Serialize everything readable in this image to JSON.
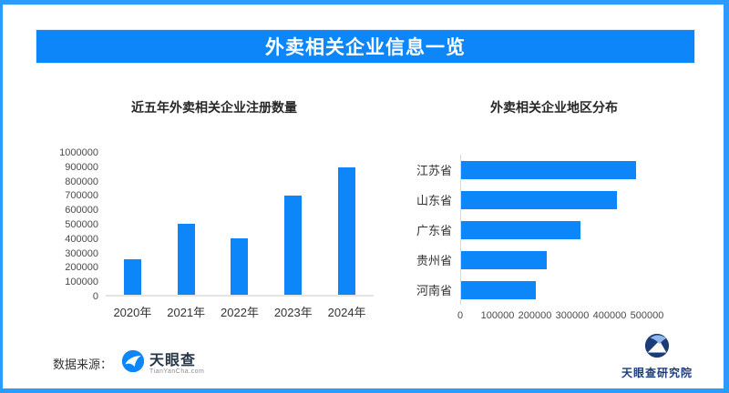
{
  "banner": {
    "title": "外卖相关企业信息一览"
  },
  "colors": {
    "brand_blue": "#0C86F8",
    "frame_blue": "#2B9CFD",
    "axis_gray": "#E4E4E4",
    "logo_navy": "#1B3C78"
  },
  "footer": {
    "source_label": "数据来源：",
    "tianyancha_logo_text": "天眼查",
    "tianyancha_logo_subtext": "TianYanCha.com",
    "institute_label": "天眼查研究院"
  },
  "chart_data": [
    {
      "type": "bar",
      "orientation": "vertical",
      "title": "近五年外卖相关企业注册数量",
      "categories": [
        "2020年",
        "2021年",
        "2022年",
        "2023年",
        "2024年"
      ],
      "values": [
        250000,
        500000,
        400000,
        700000,
        900000
      ],
      "xlabel": "",
      "ylabel": "",
      "ylim": [
        0,
        1000000
      ],
      "yticks": [
        1000000,
        900000,
        800000,
        700000,
        600000,
        500000,
        400000,
        300000,
        200000,
        100000,
        0
      ],
      "grid": false,
      "legend": false,
      "bar_color": "#0C86F8"
    },
    {
      "type": "bar",
      "orientation": "horizontal",
      "title": "外卖相关企业地区分布",
      "categories": [
        "江苏省",
        "山东省",
        "广东省",
        "贵州省",
        "河南省"
      ],
      "values": [
        470000,
        420000,
        320000,
        230000,
        200000
      ],
      "xlabel": "",
      "ylabel": "",
      "xlim": [
        0,
        500000
      ],
      "xticks": [
        0,
        100000,
        200000,
        300000,
        400000,
        500000
      ],
      "grid": false,
      "legend": false,
      "bar_color": "#0C86F8"
    }
  ]
}
